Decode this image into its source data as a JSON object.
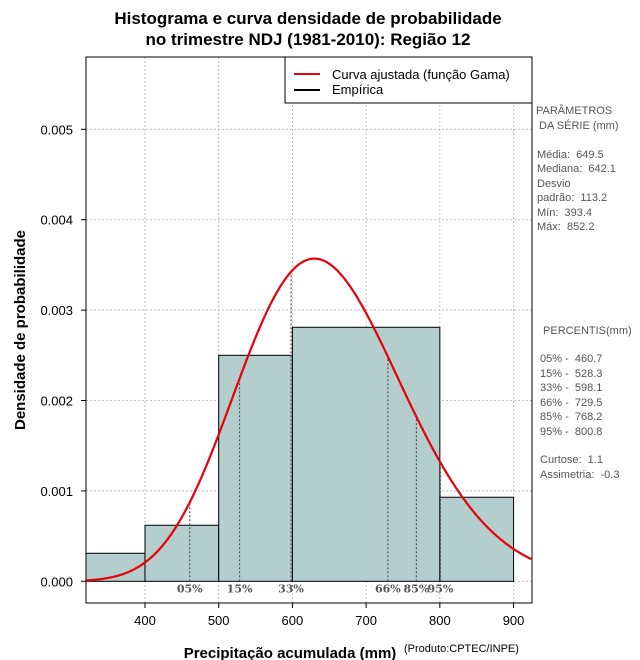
{
  "chart_data": {
    "type": "bar",
    "title": [
      "Histograma e curva densidade de probabilidade",
      "no trimestre NDJ (1981-2010): Região 12"
    ],
    "xlabel": "Precipitação acumulada (mm)",
    "ylabel": "Densidade de probabilidade",
    "credit": "(Produto:CPTEC/INPE)",
    "xlim": [
      320,
      925
    ],
    "ylim": [
      -0.00024,
      0.0058
    ],
    "xticks": [
      400,
      500,
      600,
      700,
      800,
      900
    ],
    "yticks": [
      0.0,
      0.001,
      0.002,
      0.003,
      0.004,
      0.005
    ],
    "ytick_labels": [
      "0.000",
      "0.001",
      "0.002",
      "0.003",
      "0.004",
      "0.005"
    ],
    "grid": true,
    "bins": [
      {
        "x0": 300,
        "x1": 400,
        "density": 0.00031
      },
      {
        "x0": 400,
        "x1": 500,
        "density": 0.00062
      },
      {
        "x0": 500,
        "x1": 600,
        "density": 0.0025
      },
      {
        "x0": 600,
        "x1": 800,
        "density": 0.00281
      },
      {
        "x0": 800,
        "x1": 900,
        "density": 0.00093
      }
    ],
    "curve": {
      "name": "Curva ajustada (função Gama)",
      "distribution": "gamma",
      "mean": 649.5,
      "sd": 113.2,
      "color": "#e8000b"
    },
    "percentiles": [
      {
        "label": "05%",
        "value": 460.7
      },
      {
        "label": "15%",
        "value": 528.3
      },
      {
        "label": "33%",
        "value": 598.1
      },
      {
        "label": "66%",
        "value": 729.5
      },
      {
        "label": "85%",
        "value": 768.2
      },
      {
        "label": "95%",
        "value": 800.8
      }
    ],
    "legend": [
      {
        "label": "Curva ajustada (função Gama)",
        "color": "#e8000b"
      },
      {
        "label": "Empírica",
        "color": "#000000"
      }
    ],
    "legend_position": "top-right",
    "bar_color": "#b4cdcd"
  },
  "side_panel": {
    "params_title": [
      "PARÂMETROS",
      " DA SÉRIE (mm)"
    ],
    "params": [
      "Média:  649.5",
      "Mediana:  642.1",
      "Desvio",
      "padrão:  113.2",
      "Mín:  393.4",
      "Máx:  852.2"
    ],
    "percentis_title": " PERCENTIS(mm)",
    "percentis": [
      "05% -  460.7",
      "15% -  528.3",
      "33% -  598.1",
      "66% -  729.5",
      "85% -  768.2",
      "95% -  800.8"
    ],
    "stats": [
      "Curtose:  1.1",
      "Assimetria:  -0.3"
    ]
  }
}
